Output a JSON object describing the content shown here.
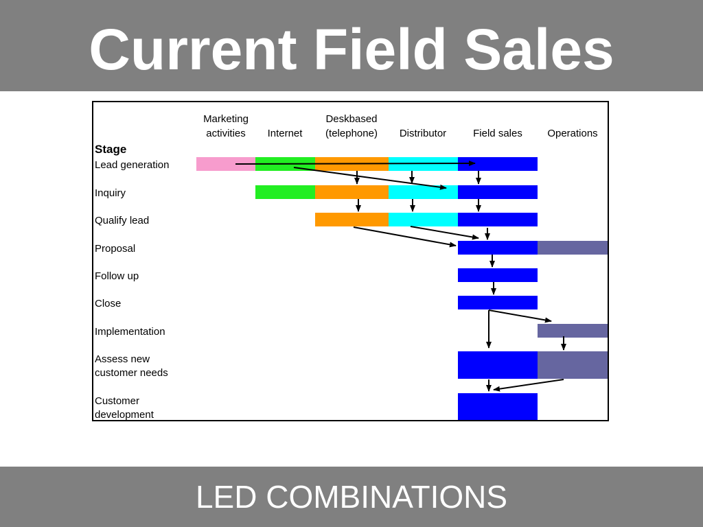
{
  "header": {
    "title": "Current Field Sales"
  },
  "diagram": {
    "columns": [
      [
        "Marketing",
        "activities"
      ],
      [
        "Internet"
      ],
      [
        "Deskbased",
        "(telephone)"
      ],
      [
        "Distributor"
      ],
      [
        "Field sales"
      ],
      [
        "Operations"
      ]
    ],
    "stage_label": "Stage",
    "rows": [
      [
        "Lead generation"
      ],
      [
        "Inquiry"
      ],
      [
        "Qualify lead"
      ],
      [
        "Proposal"
      ],
      [
        "Follow up"
      ],
      [
        "Close"
      ],
      [
        "Implementation"
      ],
      [
        "Assess new",
        "customer needs"
      ],
      [
        "Customer",
        "development"
      ]
    ]
  },
  "footer": {
    "text": "LED COMBINATIONS"
  }
}
